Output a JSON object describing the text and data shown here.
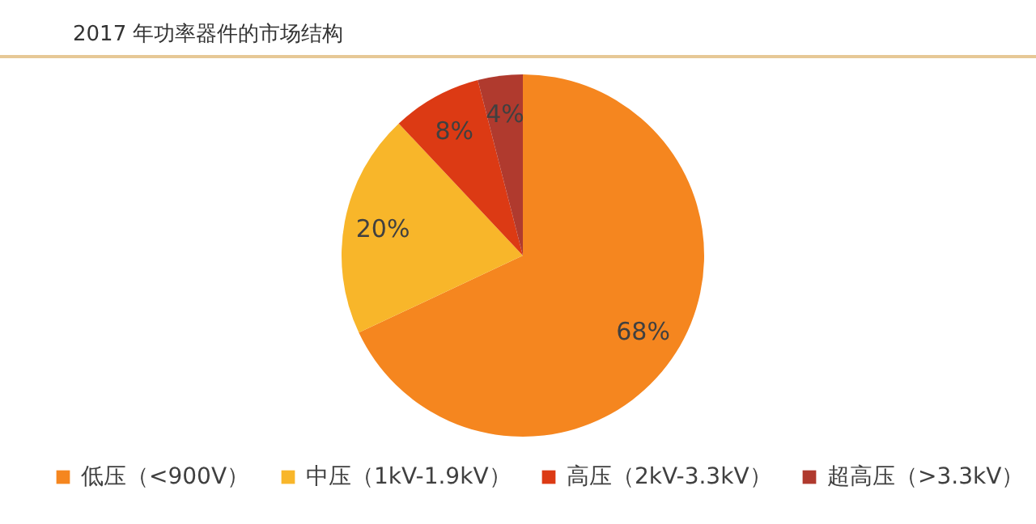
{
  "chart_data": {
    "type": "pie",
    "title": "2017 年功率器件的市场结构",
    "categories": [
      "低压（<900V）",
      "中压（1kV-1.9kV）",
      "高压（2kV-3.3kV）",
      "超高压（>3.3kV）"
    ],
    "values": [
      68,
      20,
      8,
      4
    ],
    "colors": [
      "#f5861f",
      "#f8b62a",
      "#dc3a14",
      "#b03a2e"
    ],
    "value_labels": [
      "68%",
      "20%",
      "8%",
      "4%"
    ],
    "legend": "bottom"
  }
}
